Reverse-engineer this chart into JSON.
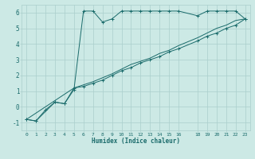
{
  "xlabel": "Humidex (Indice chaleur)",
  "bg_color": "#cce9e5",
  "grid_color": "#aacfcc",
  "line_color": "#1a6b6b",
  "xlim": [
    -0.5,
    23.5
  ],
  "ylim": [
    -1.5,
    6.5
  ],
  "xticks": [
    0,
    1,
    2,
    3,
    4,
    5,
    6,
    7,
    8,
    9,
    10,
    11,
    12,
    13,
    14,
    15,
    16,
    18,
    19,
    20,
    21,
    22,
    23
  ],
  "yticks": [
    -1,
    0,
    1,
    2,
    3,
    4,
    5,
    6
  ],
  "line1_x": [
    0,
    1,
    2,
    3,
    4,
    5,
    6,
    7,
    8,
    9,
    10,
    11,
    12,
    13,
    14,
    15,
    16,
    18,
    19,
    20,
    21,
    22,
    23
  ],
  "line1_y": [
    -0.8,
    -0.9,
    -0.2,
    0.3,
    0.2,
    1.1,
    6.1,
    6.1,
    5.4,
    5.6,
    6.1,
    6.1,
    6.1,
    6.1,
    6.1,
    6.1,
    6.1,
    5.8,
    6.1,
    6.1,
    6.1,
    6.1,
    5.6
  ],
  "line2_x": [
    0,
    1,
    3,
    4,
    5,
    6,
    7,
    8,
    9,
    10,
    11,
    12,
    13,
    14,
    15,
    16,
    18,
    19,
    20,
    21,
    22,
    23
  ],
  "line2_y": [
    -0.8,
    -0.9,
    0.3,
    0.2,
    1.2,
    1.3,
    1.5,
    1.7,
    2.0,
    2.3,
    2.5,
    2.8,
    3.0,
    3.2,
    3.5,
    3.7,
    4.2,
    4.5,
    4.7,
    5.0,
    5.2,
    5.6
  ],
  "line3_x": [
    0,
    5,
    6,
    7,
    9,
    10,
    11,
    12,
    13,
    14,
    15,
    16,
    18,
    19,
    20,
    21,
    22,
    23
  ],
  "line3_y": [
    -0.8,
    1.2,
    1.4,
    1.6,
    2.1,
    2.4,
    2.7,
    2.9,
    3.1,
    3.4,
    3.6,
    3.9,
    4.4,
    4.7,
    5.0,
    5.2,
    5.5,
    5.6
  ]
}
